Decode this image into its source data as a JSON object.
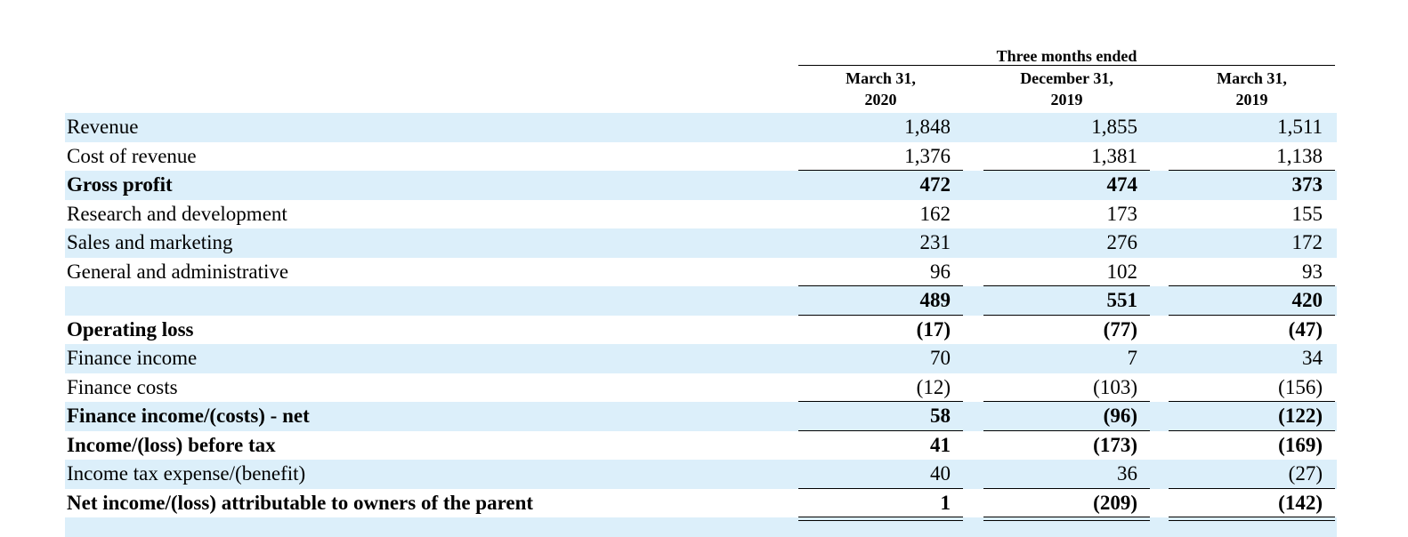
{
  "table": {
    "period": "Three months ended",
    "columns": [
      "March 31,\n2020",
      "December 31,\n2019",
      "March 31,\n2019"
    ],
    "rows": [
      {
        "label": "Revenue",
        "values": [
          "1,848",
          "1,855",
          "1,511"
        ],
        "bold": false,
        "rule_below": null
      },
      {
        "label": "Cost of revenue",
        "values": [
          "1,376",
          "1,381",
          "1,138"
        ],
        "bold": false,
        "rule_below": "single"
      },
      {
        "label": "Gross profit",
        "values": [
          "472",
          "474",
          "373"
        ],
        "bold": true,
        "rule_below": null
      },
      {
        "label": "Research and development",
        "values": [
          "162",
          "173",
          "155"
        ],
        "bold": false,
        "rule_below": null
      },
      {
        "label": "Sales and marketing",
        "values": [
          "231",
          "276",
          "172"
        ],
        "bold": false,
        "rule_below": null
      },
      {
        "label": "General and administrative",
        "values": [
          "96",
          "102",
          "93"
        ],
        "bold": false,
        "rule_below": "single"
      },
      {
        "label": null,
        "values": [
          "489",
          "551",
          "420"
        ],
        "bold": true,
        "rule_below": "single"
      },
      {
        "label": "Operating loss",
        "values": [
          "(17)",
          "(77)",
          "(47)"
        ],
        "bold": true,
        "rule_below": null
      },
      {
        "label": "Finance income",
        "values": [
          "70",
          "7",
          "34"
        ],
        "bold": false,
        "rule_below": null
      },
      {
        "label": "Finance costs",
        "values": [
          "(12)",
          "(103)",
          "(156)"
        ],
        "bold": false,
        "rule_below": "single"
      },
      {
        "label": "Finance income/(costs) - net",
        "values": [
          "58",
          "(96)",
          "(122)"
        ],
        "bold": true,
        "rule_below": "single"
      },
      {
        "label": "Income/(loss) before tax",
        "values": [
          "41",
          "(173)",
          "(169)"
        ],
        "bold": true,
        "rule_below": null
      },
      {
        "label": "Income tax expense/(benefit)",
        "values": [
          "40",
          "36",
          "(27)"
        ],
        "bold": false,
        "rule_below": "single"
      },
      {
        "label": "Net income/(loss) attributable to owners of the parent",
        "values": [
          "1",
          "(209)",
          "(142)"
        ],
        "bold": true,
        "rule_below": "double"
      }
    ]
  }
}
